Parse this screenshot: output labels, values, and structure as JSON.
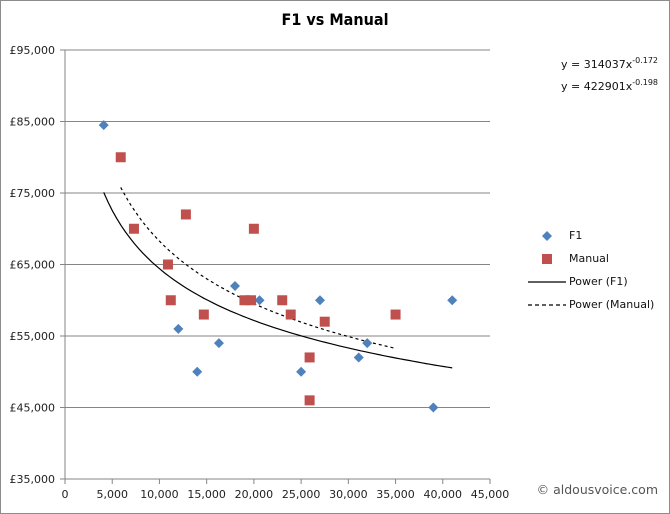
{
  "chart_data": {
    "type": "scatter",
    "title": "F1 vs Manual",
    "xlabel": "",
    "ylabel": "",
    "xlim": [
      0,
      45000
    ],
    "ylim": [
      35000,
      95000
    ],
    "x_ticks": [
      "0",
      "5,000",
      "10,000",
      "15,000",
      "20,000",
      "25,000",
      "30,000",
      "35,000",
      "40,000",
      "45,000"
    ],
    "y_ticks": [
      "£95,000",
      "£85,000",
      "£75,000",
      "£65,000",
      "£55,000",
      "£45,000",
      "£35,000"
    ],
    "grid": {
      "horizontal": true,
      "vertical": false
    },
    "legend_position": "right",
    "series": [
      {
        "name": "F1",
        "marker": "diamond",
        "color": "#4f81bd",
        "points": [
          [
            4100,
            84500
          ],
          [
            12000,
            56000
          ],
          [
            14000,
            50000
          ],
          [
            16300,
            54000
          ],
          [
            18000,
            62000
          ],
          [
            20600,
            60000
          ],
          [
            25000,
            50000
          ],
          [
            27000,
            60000
          ],
          [
            31100,
            52000
          ],
          [
            32000,
            54000
          ],
          [
            39000,
            45000
          ],
          [
            41000,
            60000
          ]
        ]
      },
      {
        "name": "Manual",
        "marker": "square",
        "color": "#c0504d",
        "points": [
          [
            5900,
            80000
          ],
          [
            7300,
            70000
          ],
          [
            10900,
            65000
          ],
          [
            11200,
            60000
          ],
          [
            12800,
            72000
          ],
          [
            14700,
            58000
          ],
          [
            19000,
            60000
          ],
          [
            19700,
            60000
          ],
          [
            20000,
            70000
          ],
          [
            23000,
            60000
          ],
          [
            23900,
            58000
          ],
          [
            25900,
            52000
          ],
          [
            25900,
            46000
          ],
          [
            27500,
            57000
          ],
          [
            35000,
            58000
          ]
        ]
      }
    ],
    "trendlines": [
      {
        "name": "Power (F1)",
        "type": "power",
        "a": 314037,
        "b": -0.172,
        "x_range": [
          4100,
          41000
        ],
        "style": "solid",
        "color": "#000000",
        "equation": "y = 314037x",
        "exponent": "-0.172"
      },
      {
        "name": "Power (Manual)",
        "type": "power",
        "a": 422901,
        "b": -0.198,
        "x_range": [
          5900,
          35000
        ],
        "style": "dashed",
        "color": "#000000",
        "equation": "y = 422901x",
        "exponent": "-0.198"
      }
    ]
  },
  "legend": {
    "items": [
      {
        "label": "F1"
      },
      {
        "label": "Manual"
      },
      {
        "label": "Power (F1)"
      },
      {
        "label": "Power (Manual)"
      }
    ]
  },
  "watermark": "© aldousvoice.com"
}
